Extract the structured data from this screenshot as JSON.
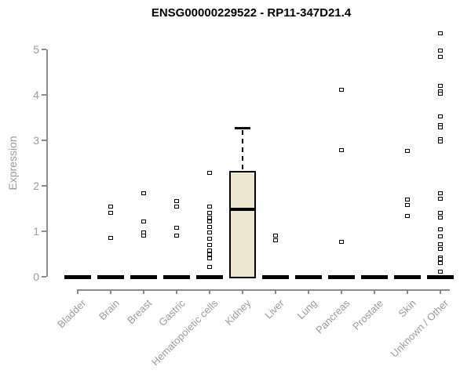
{
  "chart_data": {
    "type": "box",
    "title": "ENSG00000229522 - RP11-347D21.4",
    "xlabel": "",
    "ylabel": "Expression",
    "ylim": [
      0,
      5.4
    ],
    "yticks": [
      0,
      1,
      2,
      3,
      4,
      5
    ],
    "grid": false,
    "legend": "none",
    "categories": [
      "Bladder",
      "Brain",
      "Breast",
      "Gastric",
      "Hematopoietic cells",
      "Kidney",
      "Liver",
      "Lung",
      "Pancreas",
      "Prostate",
      "Skin",
      "Unknown / Other"
    ],
    "boxes": [
      {
        "category": "Bladder",
        "q1": 0,
        "median": 0,
        "q3": 0,
        "whisker_low": 0,
        "whisker_high": 0,
        "outliers": []
      },
      {
        "category": "Brain",
        "q1": 0,
        "median": 0,
        "q3": 0,
        "whisker_low": 0,
        "whisker_high": 0,
        "outliers": [
          1.55,
          1.4,
          0.86
        ]
      },
      {
        "category": "Breast",
        "q1": 0,
        "median": 0,
        "q3": 0,
        "whisker_low": 0,
        "whisker_high": 0,
        "outliers": [
          1.83,
          1.21,
          0.98,
          0.91
        ]
      },
      {
        "category": "Gastric",
        "q1": 0,
        "median": 0,
        "q3": 0,
        "whisker_low": 0,
        "whisker_high": 0,
        "outliers": [
          1.66,
          1.55,
          1.07,
          0.9
        ]
      },
      {
        "category": "Hematopoietic cells",
        "q1": 0,
        "median": 0,
        "q3": 0,
        "whisker_low": 0,
        "whisker_high": 0,
        "outliers": [
          2.28,
          1.55,
          1.41,
          1.31,
          1.21,
          1.1,
          0.97,
          0.83,
          0.69,
          0.57,
          0.5,
          0.4,
          0.21
        ]
      },
      {
        "category": "Kidney",
        "q1": 0,
        "median": 1.48,
        "q3": 2.33,
        "whisker_low": 0,
        "whisker_high": 3.28,
        "outliers": []
      },
      {
        "category": "Liver",
        "q1": 0,
        "median": 0,
        "q3": 0,
        "whisker_low": 0,
        "whisker_high": 0,
        "outliers": [
          0.9,
          0.8
        ]
      },
      {
        "category": "Lung",
        "q1": 0,
        "median": 0,
        "q3": 0,
        "whisker_low": 0,
        "whisker_high": 0,
        "outliers": []
      },
      {
        "category": "Pancreas",
        "q1": 0,
        "median": 0,
        "q3": 0,
        "whisker_low": 0,
        "whisker_high": 0,
        "outliers": [
          4.12,
          2.79,
          0.77
        ]
      },
      {
        "category": "Prostate",
        "q1": 0,
        "median": 0,
        "q3": 0,
        "whisker_low": 0,
        "whisker_high": 0,
        "outliers": []
      },
      {
        "category": "Skin",
        "q1": 0,
        "median": 0,
        "q3": 0,
        "whisker_low": 0,
        "whisker_high": 0,
        "outliers": [
          2.76,
          1.69,
          1.57,
          1.33
        ]
      },
      {
        "category": "Unknown / Other",
        "q1": 0,
        "median": 0,
        "q3": 0,
        "whisker_low": 0,
        "whisker_high": 0,
        "outliers": [
          5.36,
          4.98,
          4.83,
          4.19,
          4.07,
          4.02,
          3.53,
          3.34,
          3.28,
          3.02,
          2.97,
          1.84,
          1.71,
          1.4,
          1.31,
          1.05,
          0.88,
          0.71,
          0.62,
          0.43,
          0.38,
          0.31,
          0.12
        ]
      }
    ],
    "colors": {
      "box_fill": "#ECE7CE",
      "box_border": "#000000",
      "median": "#000000",
      "zero_bar": "#000000",
      "outlier": "#000000",
      "axis": "#8C8C8C",
      "tick_label": "#9A9A9A",
      "title": "#000000"
    }
  }
}
